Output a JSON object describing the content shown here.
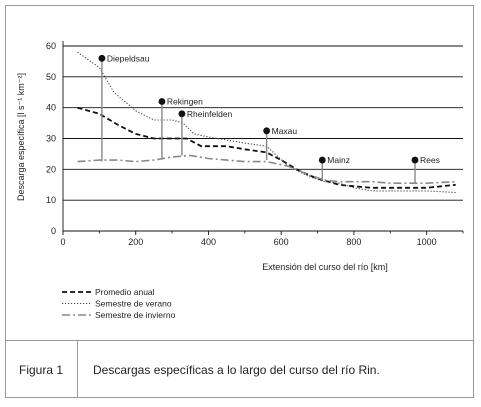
{
  "figure": {
    "label": "Figura 1",
    "caption": "Descargas específicas a lo largo del curso del río Rin."
  },
  "chart_data": {
    "type": "line",
    "xlabel": "Extensión del curso del río [km]",
    "ylabel": "Descarga específica [l s⁻¹ km⁻²]",
    "xlim": [
      0,
      1100
    ],
    "ylim": [
      0,
      65
    ],
    "x_ticks": [
      0,
      200,
      400,
      600,
      800,
      1000
    ],
    "y_ticks": [
      0,
      10,
      20,
      30,
      40,
      50,
      60
    ],
    "grid": "horizontal",
    "legend_position": "bottom-left",
    "series": [
      {
        "name": "Promedio anual",
        "style": "dashed",
        "x": [
          40,
          100,
          150,
          200,
          250,
          300,
          340,
          380,
          450,
          500,
          560,
          600,
          650,
          700,
          760,
          800,
          850,
          900,
          950,
          1000,
          1040,
          1080
        ],
        "y": [
          40,
          38,
          34.5,
          31.5,
          30,
          30,
          30,
          27.5,
          27.5,
          26.5,
          25.5,
          23,
          19.5,
          17,
          15,
          14.5,
          14,
          14,
          14,
          14,
          14.5,
          15
        ]
      },
      {
        "name": "Semestre de verano",
        "style": "dotted",
        "x": [
          40,
          100,
          140,
          200,
          250,
          300,
          330,
          360,
          400,
          450,
          500,
          560,
          620,
          680,
          720,
          760,
          800,
          850,
          900,
          950,
          1000,
          1080
        ],
        "y": [
          58,
          53,
          45,
          39,
          36,
          36,
          35,
          31.5,
          30.5,
          29.5,
          28.5,
          27.5,
          21,
          17.5,
          16,
          15.5,
          14,
          13,
          13,
          13,
          13,
          12.5
        ]
      },
      {
        "name": "Semestre de invierno",
        "style": "dashdot",
        "x": [
          40,
          100,
          150,
          200,
          250,
          300,
          350,
          400,
          450,
          500,
          560,
          620,
          680,
          720,
          760,
          800,
          850,
          900,
          950,
          1000,
          1080
        ],
        "y": [
          22.5,
          23,
          23,
          22.5,
          23,
          24,
          24.5,
          23.5,
          23,
          22.5,
          22.5,
          21,
          18,
          16.5,
          16,
          16,
          16,
          15.5,
          15.5,
          15.5,
          16
        ]
      }
    ],
    "stations": [
      {
        "name": "Diepeldsau",
        "x": 107,
        "y": 56,
        "base": 22.5
      },
      {
        "name": "Rekingen",
        "x": 272,
        "y": 42,
        "base": 23.5
      },
      {
        "name": "Rheinfelden",
        "x": 327,
        "y": 38,
        "base": 24.5
      },
      {
        "name": "Maxau",
        "x": 560,
        "y": 32.5,
        "base": 23
      },
      {
        "name": "Mainz",
        "x": 713,
        "y": 23,
        "base": 16.5
      },
      {
        "name": "Rees",
        "x": 968,
        "y": 23,
        "base": 15.5
      }
    ]
  }
}
